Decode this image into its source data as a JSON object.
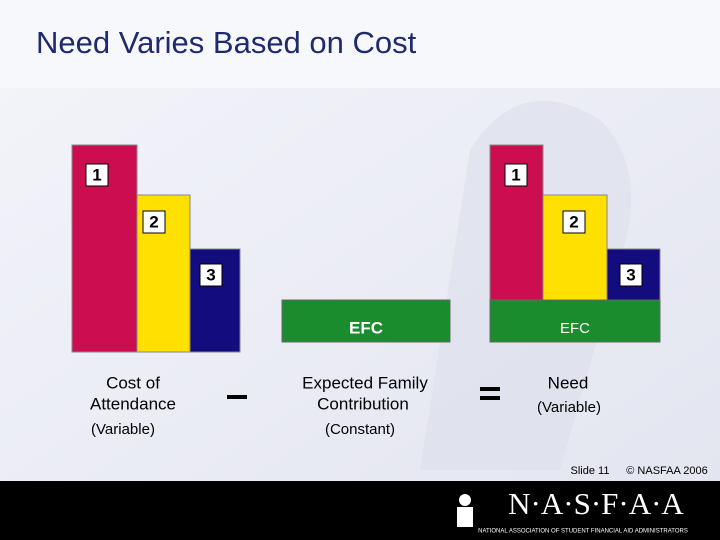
{
  "header": {
    "title": "Need Varies Based on Cost"
  },
  "cost_of_attendance": {
    "box_labels": [
      "1",
      "2",
      "3"
    ],
    "caption": [
      "Cost of",
      "Attendance"
    ],
    "note": "(Variable)"
  },
  "efc": {
    "box_label": "EFC",
    "caption": [
      "Expected Family",
      "Contribution"
    ],
    "note": "(Constant)"
  },
  "need": {
    "box_labels": [
      "1",
      "2",
      "3"
    ],
    "efc_label": "EFC",
    "caption": "Need",
    "note": "(Variable)"
  },
  "footer": {
    "slide": "Slide 11",
    "copyright": "© NASFAA 2006",
    "logo": "N·A·S·F·A·A",
    "logo_subtitle": "NATIONAL ASSOCIATION OF STUDENT FINANCIAL AID ADMINISTRATORS"
  }
}
